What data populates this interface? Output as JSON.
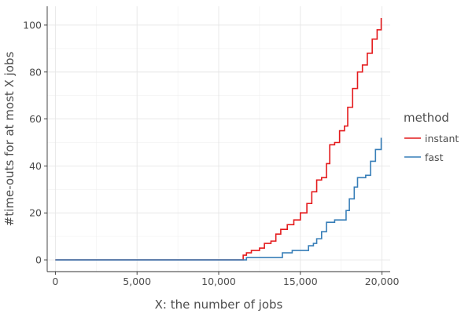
{
  "chart_data": {
    "type": "line",
    "title": "",
    "xlabel": "X: the number of jobs",
    "ylabel": "#time-outs for at most X jobs",
    "xlim": [
      -500,
      20500
    ],
    "ylim": [
      -5,
      108
    ],
    "x_ticks": [
      0,
      5000,
      10000,
      15000,
      20000
    ],
    "x_tick_labels": [
      "0",
      "5,000",
      "10,000",
      "15,000",
      "20,000"
    ],
    "y_ticks": [
      0,
      20,
      40,
      60,
      80,
      100
    ],
    "y_tick_labels": [
      "0",
      "20",
      "40",
      "60",
      "80",
      "100"
    ],
    "grid": true,
    "legend": {
      "title": "method",
      "position": "right"
    },
    "series": [
      {
        "name": "instant",
        "color": "#e41a1c",
        "points": [
          [
            0,
            0
          ],
          [
            11500,
            0
          ],
          [
            11500,
            2
          ],
          [
            11700,
            3
          ],
          [
            12000,
            4
          ],
          [
            12500,
            5
          ],
          [
            12800,
            7
          ],
          [
            13200,
            8
          ],
          [
            13500,
            11
          ],
          [
            13800,
            13
          ],
          [
            14200,
            15
          ],
          [
            14600,
            17
          ],
          [
            15000,
            20
          ],
          [
            15400,
            24
          ],
          [
            15700,
            29
          ],
          [
            16000,
            34
          ],
          [
            16300,
            35
          ],
          [
            16600,
            41
          ],
          [
            16800,
            49
          ],
          [
            17100,
            50
          ],
          [
            17400,
            55
          ],
          [
            17700,
            57
          ],
          [
            17900,
            65
          ],
          [
            18200,
            73
          ],
          [
            18500,
            80
          ],
          [
            18800,
            83
          ],
          [
            19100,
            88
          ],
          [
            19400,
            94
          ],
          [
            19700,
            98
          ],
          [
            19950,
            103
          ]
        ]
      },
      {
        "name": "fast",
        "color": "#377eb8",
        "points": [
          [
            0,
            0
          ],
          [
            11700,
            0
          ],
          [
            11700,
            1
          ],
          [
            12500,
            1
          ],
          [
            13900,
            1
          ],
          [
            13900,
            3
          ],
          [
            14500,
            4
          ],
          [
            15200,
            4
          ],
          [
            15500,
            6
          ],
          [
            15800,
            7
          ],
          [
            16000,
            9
          ],
          [
            16300,
            12
          ],
          [
            16600,
            16
          ],
          [
            17100,
            17
          ],
          [
            17600,
            17
          ],
          [
            17800,
            21
          ],
          [
            18000,
            26
          ],
          [
            18300,
            31
          ],
          [
            18500,
            35
          ],
          [
            19000,
            36
          ],
          [
            19300,
            42
          ],
          [
            19600,
            47
          ],
          [
            19950,
            52
          ]
        ]
      }
    ]
  }
}
